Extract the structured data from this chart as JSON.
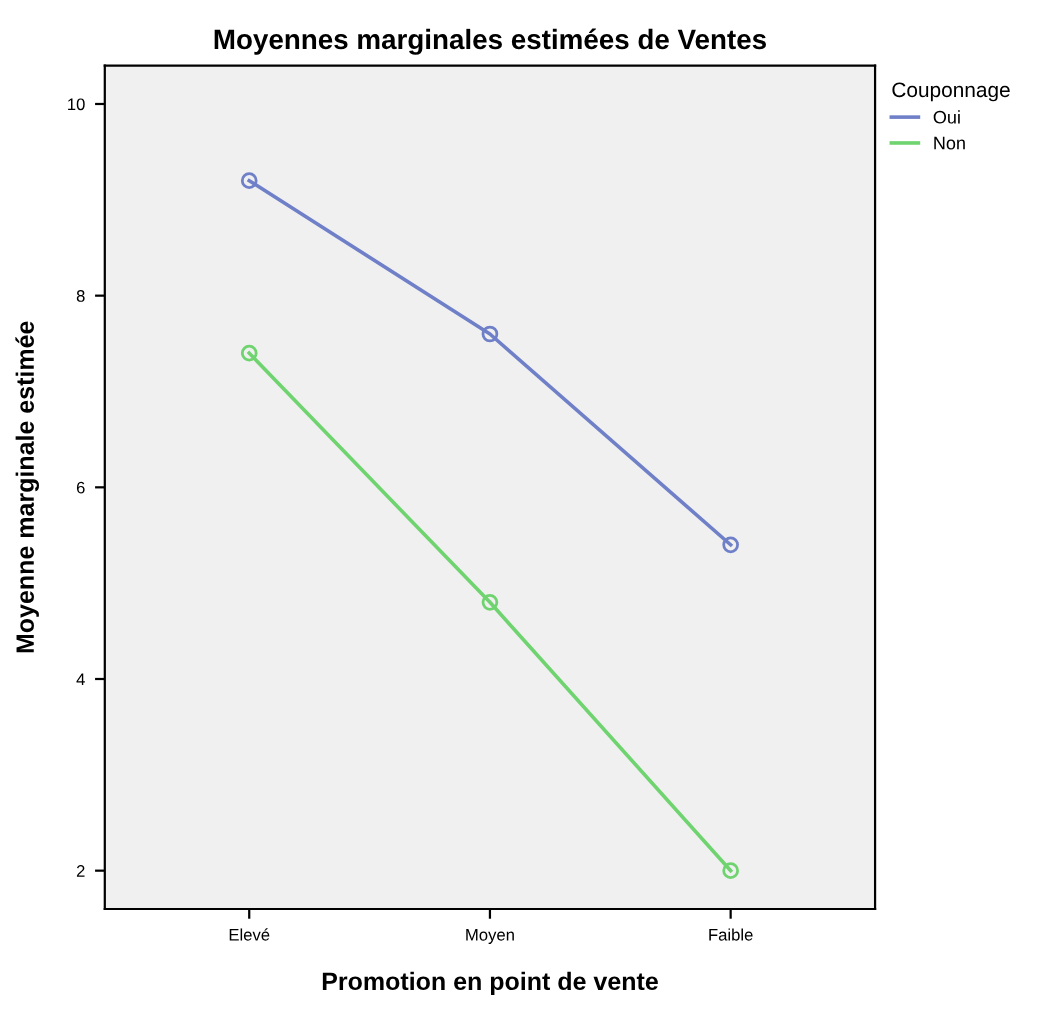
{
  "chart_data": {
    "type": "line",
    "title": "Moyennes marginales estimées de Ventes",
    "xlabel": "Promotion en point de vente",
    "ylabel": "Moyenne marginale estimée",
    "legend_title": "Couponnage",
    "legend": "top right",
    "marker": "circle",
    "line_style": "solid",
    "grid": false,
    "categories": [
      "Elevé",
      "Moyen",
      "Faible"
    ],
    "ylim": [
      1.6,
      10.4
    ],
    "yticks": [
      2,
      4,
      6,
      8,
      10
    ],
    "series": [
      {
        "name": "Oui",
        "color": "#6f80c8",
        "values": [
          9.2,
          7.6,
          5.4
        ]
      },
      {
        "name": "Non",
        "color": "#6fd46f",
        "values": [
          7.4,
          4.8,
          2.0
        ]
      }
    ]
  }
}
